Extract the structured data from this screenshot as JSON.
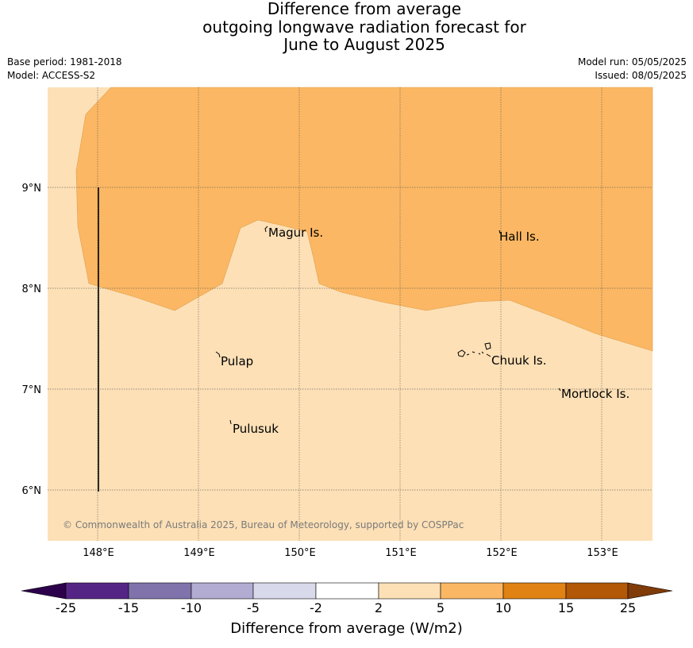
{
  "title": {
    "line1": "Difference from average",
    "line2": "outgoing longwave radiation forecast for",
    "line3": "June to August 2025"
  },
  "meta": {
    "base_period": "Base period: 1981-2018",
    "model": "Model: ACCESS-S2",
    "model_run": "Model run: 05/05/2025",
    "issued": "Issued: 08/05/2025"
  },
  "map": {
    "colors": {
      "band_2_5": "#fde0b6",
      "band_5_10": "#fbb763",
      "grid": "#555555"
    },
    "lon_ticks": [
      "148°E",
      "149°E",
      "150°E",
      "151°E",
      "152°E",
      "153°E"
    ],
    "lat_ticks": [
      "9°N",
      "8°N",
      "7°N",
      "6°N"
    ],
    "places": [
      {
        "name": "Magur Is."
      },
      {
        "name": "Hall Is."
      },
      {
        "name": "Pulap"
      },
      {
        "name": "Chuuk Is."
      },
      {
        "name": "Mortlock Is."
      },
      {
        "name": "Pulusuk"
      }
    ],
    "copyright": "© Commonwealth of Australia 2025, Bureau of Meteorology, supported by COSPPac"
  },
  "colorbar": {
    "colors": [
      "#552586",
      "#8073ac",
      "#b2abd2",
      "#d8daeb",
      "#ffffff",
      "#fde0b6",
      "#fbb763",
      "#e08214",
      "#b35806"
    ],
    "extend_low": "#2d004b",
    "extend_high": "#7f3b08",
    "ticks": [
      "-25",
      "-15",
      "-10",
      "-5",
      "-2",
      "2",
      "5",
      "10",
      "15",
      "25"
    ],
    "label": "Difference from average (W/m2)"
  }
}
